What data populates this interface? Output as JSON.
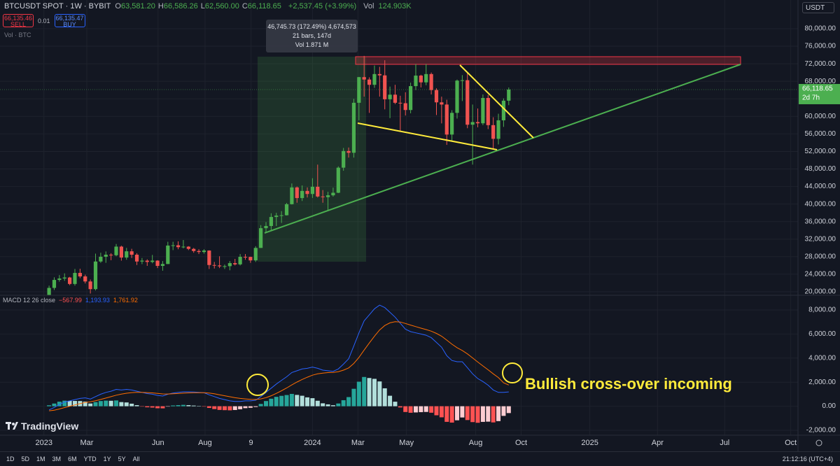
{
  "header": {
    "symbol": "BTCUSDT SPOT · 1W · BYBIT",
    "ohlc": [
      {
        "label": "O",
        "value": "63,581.20"
      },
      {
        "label": "H",
        "value": "66,586.26"
      },
      {
        "label": "L",
        "value": "62,560.00"
      },
      {
        "label": "C",
        "value": "66,118.65"
      }
    ],
    "change": "+2,537.45 (+3.99%)",
    "volume_label": "Vol",
    "volume": "124.903K",
    "sell_price": "66,135.46",
    "sell": "SELL",
    "spread": "0.01",
    "buy_price": "66,135.47",
    "buy": "BUY",
    "vol_indicator": "Vol · BTC",
    "currency": "USDT"
  },
  "chart_data": [
    {
      "type": "candlestick",
      "x": [
        1,
        2,
        3,
        4,
        5,
        6,
        7,
        8,
        9,
        10,
        11,
        12,
        13,
        14,
        15,
        16,
        17,
        18,
        19,
        20,
        21,
        22,
        23,
        24,
        25,
        26,
        27,
        28,
        29,
        30,
        31,
        32,
        33,
        34,
        35,
        36,
        37,
        38,
        39,
        40,
        41,
        42,
        43,
        44,
        45,
        46,
        47,
        48,
        49,
        50,
        51,
        52,
        53,
        54,
        55,
        56,
        57,
        58,
        59,
        60,
        61,
        62,
        63,
        64,
        65,
        66,
        67,
        68,
        69,
        70,
        71,
        72,
        73,
        74,
        75,
        76,
        77,
        78,
        79,
        80,
        81,
        82,
        83,
        84,
        85,
        86,
        87,
        88,
        89,
        90
      ],
      "open": [
        17200,
        20880,
        22700,
        23020,
        23250,
        21780,
        24300,
        23500,
        22350,
        20600,
        26900,
        27990,
        28450,
        28330,
        30300,
        27800,
        29230,
        28450,
        26900,
        27100,
        26800,
        27100,
        25900,
        26330,
        30540,
        30600,
        30170,
        30290,
        29780,
        29300,
        29070,
        29400,
        26100,
        26000,
        25800,
        25840,
        26530,
        26250,
        27970,
        27950,
        27150,
        30000,
        34500,
        35000,
        37060,
        37370,
        37450,
        39970,
        43800,
        41370,
        43000,
        42300,
        43950,
        41730,
        41580,
        42000,
        42580,
        48300,
        52100,
        51700,
        63100,
        68950,
        68400,
        67200,
        69650,
        69350,
        63900,
        64950,
        63100,
        63000,
        61450,
        66900,
        69300,
        67760,
        69650,
        66000,
        63200,
        62700,
        55850,
        60800,
        68160,
        68250,
        58100,
        58700,
        58420,
        64200,
        58000,
        54880,
        59100,
        63581.2
      ],
      "high": [
        21400,
        23300,
        23800,
        24200,
        23400,
        25200,
        25250,
        23900,
        22800,
        28700,
        28900,
        29200,
        28800,
        30900,
        30500,
        30000,
        29800,
        28800,
        27700,
        27400,
        28400,
        27200,
        27000,
        31400,
        31400,
        31500,
        31800,
        30400,
        30000,
        29700,
        29700,
        29450,
        26800,
        28100,
        26200,
        27000,
        27500,
        28600,
        28600,
        28000,
        30400,
        35200,
        35900,
        37900,
        38000,
        38400,
        40250,
        44700,
        44000,
        44250,
        43800,
        45900,
        49000,
        43200,
        42800,
        43750,
        48600,
        52800,
        52900,
        64000,
        69000,
        73800,
        68900,
        71600,
        71300,
        72800,
        66800,
        67200,
        64700,
        65500,
        67700,
        71950,
        69500,
        71950,
        70000,
        66400,
        64500,
        63800,
        61400,
        68400,
        69400,
        70000,
        62700,
        61800,
        65000,
        64900,
        59800,
        60600,
        64100,
        66586.26
      ],
      "low": [
        17100,
        20400,
        22300,
        22500,
        21500,
        21400,
        23100,
        21900,
        19600,
        20300,
        26600,
        26600,
        27200,
        28100,
        27100,
        27300,
        27700,
        26100,
        26300,
        25900,
        26500,
        25400,
        24800,
        26300,
        29500,
        29700,
        29900,
        29500,
        28900,
        28600,
        28700,
        25200,
        25300,
        25400,
        25200,
        24900,
        26000,
        26000,
        27300,
        26600,
        26800,
        30000,
        33400,
        34100,
        35000,
        35700,
        37400,
        39900,
        40300,
        40700,
        41500,
        41400,
        41500,
        40300,
        38500,
        41700,
        42500,
        47600,
        50600,
        50600,
        59100,
        64500,
        60800,
        66500,
        64500,
        61600,
        59600,
        62800,
        56500,
        60200,
        60700,
        66000,
        66600,
        67100,
        65000,
        60300,
        58400,
        53500,
        54300,
        59500,
        63500,
        57300,
        49000,
        57500,
        58000,
        57100,
        52600,
        53600,
        57600,
        62560
      ],
      "close": [
        20880,
        22700,
        23020,
        23250,
        21780,
        24300,
        23500,
        22350,
        20600,
        26900,
        27990,
        28450,
        28330,
        30300,
        27800,
        29230,
        28450,
        26900,
        27100,
        26800,
        27100,
        25900,
        26330,
        30540,
        30600,
        30170,
        30290,
        29780,
        29300,
        29070,
        29400,
        26100,
        26000,
        25800,
        25840,
        26530,
        26250,
        27970,
        27950,
        27150,
        30000,
        34500,
        35000,
        37060,
        37370,
        37450,
        39970,
        43800,
        41370,
        43000,
        42300,
        43950,
        41730,
        41580,
        42000,
        42580,
        48300,
        52100,
        51700,
        63100,
        68950,
        68400,
        67200,
        69650,
        69350,
        63900,
        64950,
        63100,
        63000,
        61450,
        66900,
        69300,
        67760,
        69650,
        66000,
        63200,
        62700,
        55850,
        60800,
        68160,
        68250,
        58100,
        58700,
        58420,
        64200,
        58000,
        54880,
        59100,
        63581.2,
        66118.65
      ],
      "up_color": "#4caf50",
      "down_color": "#f05350",
      "xlim": [
        -8.5,
        146
      ],
      "xticks": [
        {
          "value": 0,
          "label": "2023"
        },
        {
          "value": 8.3,
          "label": "Mar"
        },
        {
          "value": 22.1,
          "label": "Jun"
        },
        {
          "value": 31.2,
          "label": "Aug"
        },
        {
          "value": 40.1,
          "label": "9"
        },
        {
          "value": 52,
          "label": "2024"
        },
        {
          "value": 60.8,
          "label": "Mar"
        },
        {
          "value": 70.2,
          "label": "May"
        },
        {
          "value": 83.6,
          "label": "Aug"
        },
        {
          "value": 92.4,
          "label": "Oct"
        },
        {
          "value": 105.7,
          "label": "2025"
        },
        {
          "value": 118.8,
          "label": "Apr"
        },
        {
          "value": 131.8,
          "label": "Jul"
        },
        {
          "value": 144.6,
          "label": "Oct"
        }
      ],
      "ylim": [
        19200,
        86540
      ],
      "yticks": [
        {
          "value": 20000,
          "label": "20,000.00"
        },
        {
          "value": 24000,
          "label": "24,000.00"
        },
        {
          "value": 28000,
          "label": "28,000.00"
        },
        {
          "value": 32000,
          "label": "32,000.00"
        },
        {
          "value": 36000,
          "label": "36,000.00"
        },
        {
          "value": 40000,
          "label": "40,000.00"
        },
        {
          "value": 44000,
          "label": "44,000.00"
        },
        {
          "value": 48000,
          "label": "48,000.00"
        },
        {
          "value": 52000,
          "label": "52,000.00"
        },
        {
          "value": 56000,
          "label": "56,000.00"
        },
        {
          "value": 60000,
          "label": "60,000.00"
        },
        {
          "value": 64000,
          "label": "64,000.00"
        },
        {
          "value": 68000,
          "label": "68,000.00"
        },
        {
          "value": 72000,
          "label": "72,000.00"
        },
        {
          "value": 76000,
          "label": "76,000.00"
        },
        {
          "value": 80000,
          "label": "80,000.00"
        }
      ],
      "grid": true,
      "last_price_label": "66,118.65",
      "countdown": "2d 7h"
    },
    {
      "type": "macd",
      "title": "MACD 12 26 close",
      "histogram": {
        "colors": [
          "#26a69a",
          "#b2dfdb",
          "#ff5252",
          "#ffcdd2"
        ],
        "legend_label": "−567.99",
        "values": [
          80,
          224,
          379,
          463,
          450,
          440,
          432,
          386,
          229,
          343,
          434,
          467,
          454,
          483,
          346,
          317,
          214,
          91,
          -7,
          -86,
          -109,
          -167,
          -174,
          -19,
          65,
          92,
          114,
          91,
          57,
          22,
          -6,
          -141,
          -233,
          -306,
          -325,
          -340,
          -312,
          -250,
          -160,
          -128,
          -62,
          190,
          432,
          626,
          781,
          865,
          932,
          1026,
          941,
          873,
          738,
          670,
          456,
          245,
          156,
          85,
          228,
          502,
          762,
          1450,
          2040,
          2432,
          2346,
          2277,
          2062,
          1490,
          872,
          378,
          -98,
          -478,
          -542,
          -514,
          -491,
          -473,
          -538,
          -750,
          -920,
          -1296,
          -1357,
          -1166,
          -933,
          -1146,
          -1317,
          -1374,
          -1299,
          -1279,
          -1343,
          -1234,
          -800,
          -567.99
        ]
      },
      "macd": {
        "color": "#2962ff",
        "legend_label": "1,193.93",
        "values": [
          -300,
          -100,
          150,
          350,
          450,
          550,
          650,
          700,
          600,
          800,
          1000,
          1150,
          1250,
          1400,
          1350,
          1400,
          1350,
          1250,
          1150,
          1050,
          1000,
          900,
          850,
          1000,
          1100,
          1150,
          1200,
          1200,
          1180,
          1150,
          1120,
          950,
          800,
          650,
          550,
          450,
          400,
          400,
          450,
          450,
          500,
          800,
          1150,
          1500,
          1850,
          2150,
          2450,
          2800,
          2950,
          3100,
          3150,
          3250,
          3150,
          3000,
          2950,
          2900,
          3100,
          3500,
          3950,
          5000,
          6100,
          7100,
          7600,
          8100,
          8400,
          8200,
          7800,
          7400,
          6900,
          6400,
          6200,
          6100,
          6000,
          5900,
          5700,
          5300,
          4900,
          4200,
          3800,
          3700,
          3700,
          3200,
          2700,
          2300,
          2050,
          1750,
          1350,
          1150,
          1150,
          1193.93
        ]
      },
      "signal": {
        "color": "#ff6d00",
        "legend_label": "1,761.92",
        "values": [
          -380,
          -324,
          -229,
          -113,
          0,
          110,
          218,
          314,
          371,
          457,
          566,
          683,
          796,
          917,
          1004,
          1083,
          1136,
          1159,
          1157,
          1136,
          1109,
          1067,
          1024,
          1019,
          1035,
          1058,
          1086,
          1109,
          1123,
          1128,
          1126,
          1091,
          1033,
          956,
          875,
          790,
          712,
          650,
          610,
          578,
          562,
          610,
          718,
          874,
          1069,
          1285,
          1518,
          1774,
          2009,
          2227,
          2412,
          2580,
          2694,
          2755,
          2794,
          2815,
          2872,
          2998,
          3188,
          3550,
          4060,
          4668,
          5254,
          5823,
          6338,
          6710,
          6928,
          7022,
          6998,
          6878,
          6742,
          6614,
          6491,
          6373,
          6238,
          6050,
          5820,
          5496,
          5157,
          4866,
          4633,
          4346,
          4017,
          3674,
          3349,
          3029,
          2693,
          2384,
          1950,
          1761.92
        ]
      },
      "ylim": [
        -2407,
        9221
      ],
      "yticks": [
        {
          "value": -2000,
          "label": "-2,000.00"
        },
        {
          "value": 0,
          "label": "0.00"
        },
        {
          "value": 2000,
          "label": "2,000.00"
        },
        {
          "value": 4000,
          "label": "4,000.00"
        },
        {
          "value": 6000,
          "label": "6,000.00"
        },
        {
          "value": 8000,
          "label": "8,000.00"
        }
      ],
      "grid": true
    }
  ],
  "measure": [
    "46,745.73 (172.49%) 4,674,573",
    "21 bars, 147d",
    "Vol 1.871 M"
  ],
  "annotation": "Bullish cross-over incoming",
  "logo": "TradingView",
  "footer": {
    "ranges": [
      "1D",
      "5D",
      "1M",
      "3M",
      "6M",
      "YTD",
      "1Y",
      "5Y",
      "All"
    ],
    "clock": "21:12:16 (UTC+4)"
  }
}
